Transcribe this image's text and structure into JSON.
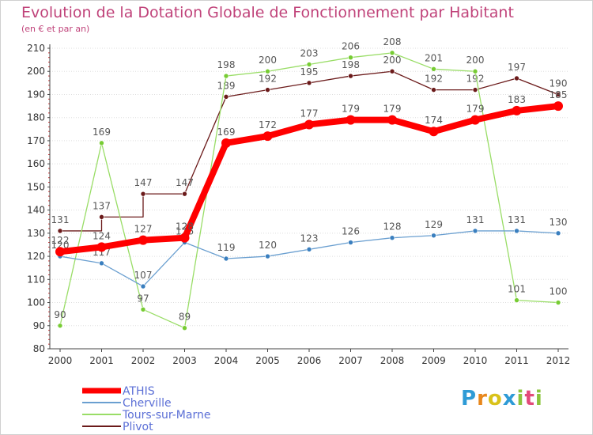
{
  "chart_data": {
    "type": "line",
    "title": "Evolution de la Dotation Globale de Fonctionnement par Habitant",
    "subtitle": "(en € et par an)",
    "xlabel": "",
    "ylabel": "",
    "ylim": [
      80,
      210
    ],
    "yticks": [
      80,
      90,
      100,
      110,
      120,
      130,
      140,
      150,
      160,
      170,
      180,
      190,
      200,
      210
    ],
    "grid": true,
    "categories": [
      "2000",
      "2001",
      "2002",
      "2003",
      "2004",
      "2005",
      "2006",
      "2007",
      "2008",
      "2009",
      "2010",
      "2011",
      "2012"
    ],
    "series": [
      {
        "name": "Plivot",
        "color": "#6b1a1a",
        "step": true,
        "values": [
          131,
          137,
          147,
          147,
          189,
          192,
          195,
          198,
          200,
          192,
          192,
          197,
          190
        ]
      },
      {
        "name": "Tours-sur-Marne",
        "color": "#99dd66",
        "marker": "#77cc33",
        "values": [
          90,
          169,
          97,
          89,
          198,
          200,
          203,
          206,
          208,
          201,
          200,
          101,
          100
        ]
      },
      {
        "name": "Cherville",
        "color": "#6a9fd0",
        "marker": "#3a7fbf",
        "values": [
          120,
          117,
          107,
          126,
          119,
          120,
          123,
          126,
          128,
          129,
          131,
          131,
          130
        ]
      },
      {
        "name": "ATHIS",
        "color": "#ff0000",
        "values": [
          122,
          124,
          127,
          128,
          169,
          172,
          177,
          179,
          179,
          174,
          179,
          183,
          185
        ]
      }
    ],
    "legend_order": [
      "ATHIS",
      "Cherville",
      "Tours-sur-Marne",
      "Plivot"
    ],
    "legend_position": "bottom-left"
  },
  "logo": {
    "p": "P",
    "r": "r",
    "o": "o",
    "x": "x",
    "i": "i",
    "t": "t",
    "i2": "i"
  }
}
